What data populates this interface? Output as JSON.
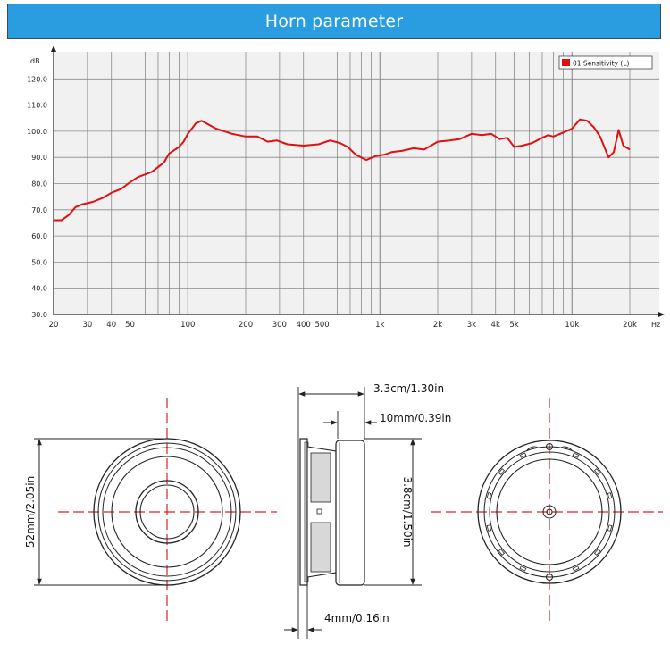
{
  "header": {
    "title": "Horn parameter"
  },
  "chart_data": {
    "type": "line",
    "title": "",
    "xlabel": "Hz",
    "ylabel": "dB",
    "xscale": "log",
    "xlim": [
      20,
      20000
    ],
    "ylim": [
      30,
      130
    ],
    "grid": true,
    "legend_position": "top-right",
    "x_ticks": [
      {
        "value": 20,
        "label": "20"
      },
      {
        "value": 30,
        "label": "30"
      },
      {
        "value": 40,
        "label": "40"
      },
      {
        "value": 50,
        "label": "50"
      },
      {
        "value": 100,
        "label": "100"
      },
      {
        "value": 200,
        "label": "200"
      },
      {
        "value": 300,
        "label": "300"
      },
      {
        "value": 400,
        "label": "400"
      },
      {
        "value": 500,
        "label": "500"
      },
      {
        "value": 1000,
        "label": "1k"
      },
      {
        "value": 2000,
        "label": "2k"
      },
      {
        "value": 3000,
        "label": "3k"
      },
      {
        "value": 4000,
        "label": "4k"
      },
      {
        "value": 5000,
        "label": "5k"
      },
      {
        "value": 10000,
        "label": "10k"
      },
      {
        "value": 20000,
        "label": "20k"
      }
    ],
    "y_ticks": [
      {
        "value": 30,
        "label": "30.0"
      },
      {
        "value": 40,
        "label": "40.0"
      },
      {
        "value": 50,
        "label": "50.0"
      },
      {
        "value": 60,
        "label": "60.0"
      },
      {
        "value": 70,
        "label": "70.0"
      },
      {
        "value": 80,
        "label": "80.0"
      },
      {
        "value": 90,
        "label": "90.0"
      },
      {
        "value": 100,
        "label": "100.0"
      },
      {
        "value": 110,
        "label": "110.0"
      },
      {
        "value": 120,
        "label": "120.0"
      }
    ],
    "series": [
      {
        "name": "01 Sensitivity (L)",
        "color": "#e01010",
        "points": [
          [
            20,
            66
          ],
          [
            22,
            66
          ],
          [
            24,
            68
          ],
          [
            26,
            71
          ],
          [
            28,
            72
          ],
          [
            32,
            73
          ],
          [
            36,
            74.5
          ],
          [
            40,
            76.5
          ],
          [
            45,
            78
          ],
          [
            50,
            80.5
          ],
          [
            55,
            82.5
          ],
          [
            65,
            84.5
          ],
          [
            75,
            88
          ],
          [
            80,
            91.5
          ],
          [
            90,
            94
          ],
          [
            95,
            96
          ],
          [
            100,
            99
          ],
          [
            105,
            101
          ],
          [
            110,
            103
          ],
          [
            118,
            104
          ],
          [
            125,
            103
          ],
          [
            140,
            101
          ],
          [
            170,
            99
          ],
          [
            200,
            98
          ],
          [
            230,
            98
          ],
          [
            260,
            96
          ],
          [
            290,
            96.5
          ],
          [
            330,
            95
          ],
          [
            400,
            94.5
          ],
          [
            480,
            95
          ],
          [
            550,
            96.5
          ],
          [
            620,
            95.5
          ],
          [
            680,
            94
          ],
          [
            750,
            91
          ],
          [
            850,
            89
          ],
          [
            950,
            90.5
          ],
          [
            1050,
            91
          ],
          [
            1150,
            92
          ],
          [
            1300,
            92.5
          ],
          [
            1500,
            93.5
          ],
          [
            1700,
            93
          ],
          [
            2000,
            96
          ],
          [
            2300,
            96.5
          ],
          [
            2600,
            97
          ],
          [
            3000,
            99
          ],
          [
            3400,
            98.5
          ],
          [
            3800,
            99
          ],
          [
            4200,
            97
          ],
          [
            4600,
            97.5
          ],
          [
            5000,
            94
          ],
          [
            5500,
            94.5
          ],
          [
            6200,
            95.5
          ],
          [
            7000,
            97.5
          ],
          [
            7500,
            98.5
          ],
          [
            8000,
            98
          ],
          [
            9000,
            99.5
          ],
          [
            10000,
            101
          ],
          [
            11000,
            104.5
          ],
          [
            12000,
            104
          ],
          [
            13000,
            101.5
          ],
          [
            14000,
            98
          ],
          [
            15500,
            90
          ],
          [
            16500,
            92
          ],
          [
            17500,
            100.5
          ],
          [
            18500,
            94.5
          ],
          [
            20000,
            93
          ]
        ]
      }
    ]
  },
  "dimensions": {
    "total_depth": "3.3cm/1.30in",
    "magnet_depth": "10mm/0.39in",
    "frame_height": "3.8cm/1.50in",
    "outer_diameter": "52mm/2.05in",
    "flange_thickness": "4mm/0.16in"
  },
  "colors": {
    "banner": "#2a9ce0",
    "curve": "#e01010",
    "grid": "#8a8a8a",
    "center_line": "#e02020"
  }
}
